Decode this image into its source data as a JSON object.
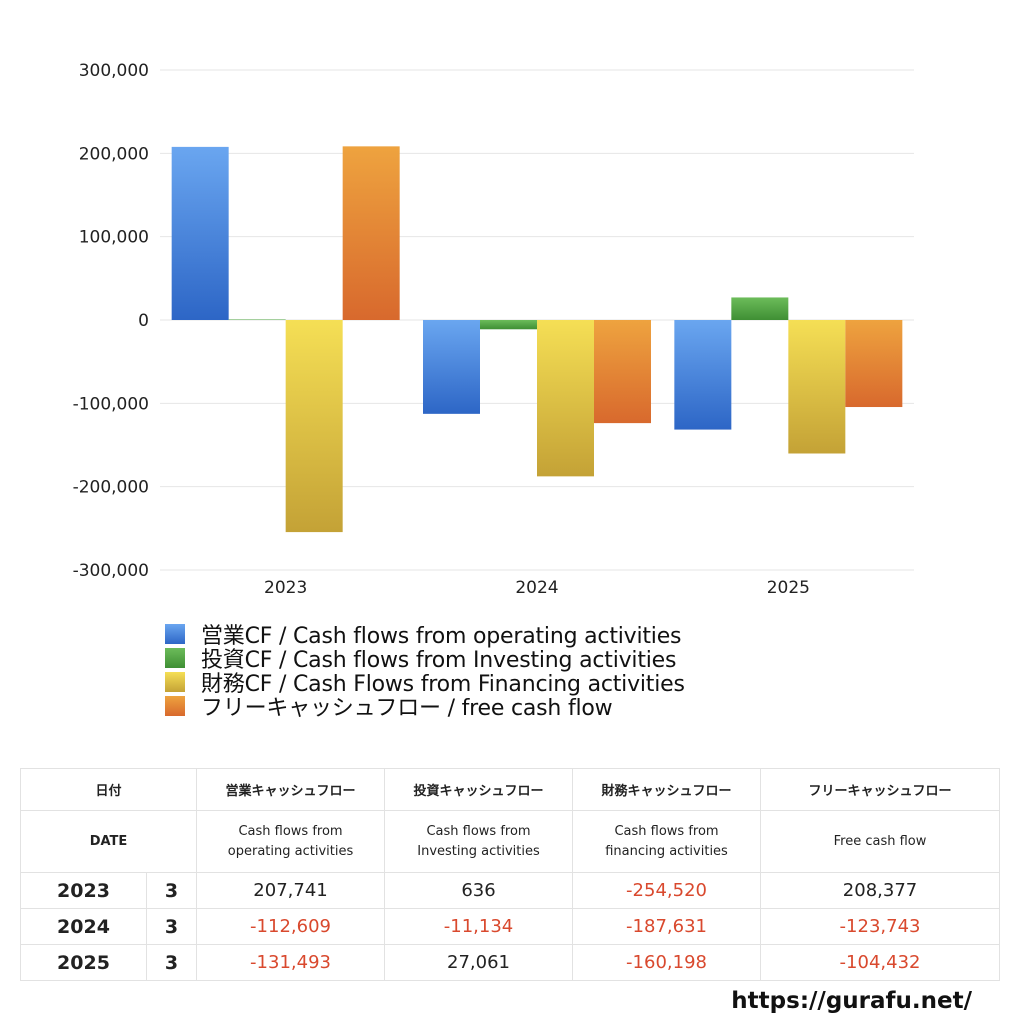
{
  "chart_data": {
    "type": "bar",
    "categories": [
      "2023",
      "2024",
      "2025"
    ],
    "series": [
      {
        "name": "営業CF / Cash flows from operating activities",
        "values": [
          207741,
          -112609,
          -131493
        ],
        "color_top": "#6aa6f0",
        "color_bottom": "#2d66c6"
      },
      {
        "name": "投資CF / Cash flows from Investing activities",
        "values": [
          636,
          -11134,
          27061
        ],
        "color_top": "#6cbc5a",
        "color_bottom": "#3f8f34"
      },
      {
        "name": "財務CF / Cash Flows from Financing activities",
        "values": [
          -254520,
          -187631,
          -160198
        ],
        "color_top": "#f5df55",
        "color_bottom": "#c4a236"
      },
      {
        "name": "フリーキャッシュフロー / free cash flow",
        "values": [
          208377,
          -123743,
          -104432
        ],
        "color_top": "#eea33f",
        "color_bottom": "#d8692d"
      }
    ],
    "ylim": [
      -300000,
      300000
    ],
    "yticks": [
      300000,
      200000,
      100000,
      0,
      -100000,
      -200000,
      -300000
    ],
    "ytick_labels": [
      "300,000",
      "200,000",
      "100,000",
      "0",
      "-100,000",
      "-200,000",
      "-300,000"
    ],
    "grid": true,
    "legend_position": "bottom-left",
    "negative_color": "#d9492e"
  },
  "table": {
    "headers_ja": {
      "date": "日付",
      "operating": "営業キャッシュフロー",
      "investing": "投資キャッシュフロー",
      "financing": "財務キャッシュフロー",
      "free": "フリーキャッシュフロー"
    },
    "headers_en": {
      "date": "DATE",
      "operating": "Cash flows from operating activities",
      "investing": "Cash flows from Investing activities",
      "financing": "Cash flows from financing activities",
      "free": "Free cash flow"
    },
    "rows": [
      {
        "year": "2023",
        "month": "3",
        "operating": "207,741",
        "investing": "636",
        "financing": "-254,520",
        "free": "208,377"
      },
      {
        "year": "2024",
        "month": "3",
        "operating": "-112,609",
        "investing": "-11,134",
        "financing": "-187,631",
        "free": "-123,743"
      },
      {
        "year": "2025",
        "month": "3",
        "operating": "-131,493",
        "investing": "27,061",
        "financing": "-160,198",
        "free": "-104,432"
      }
    ]
  },
  "footer": {
    "site": "https://gurafu.net/"
  }
}
